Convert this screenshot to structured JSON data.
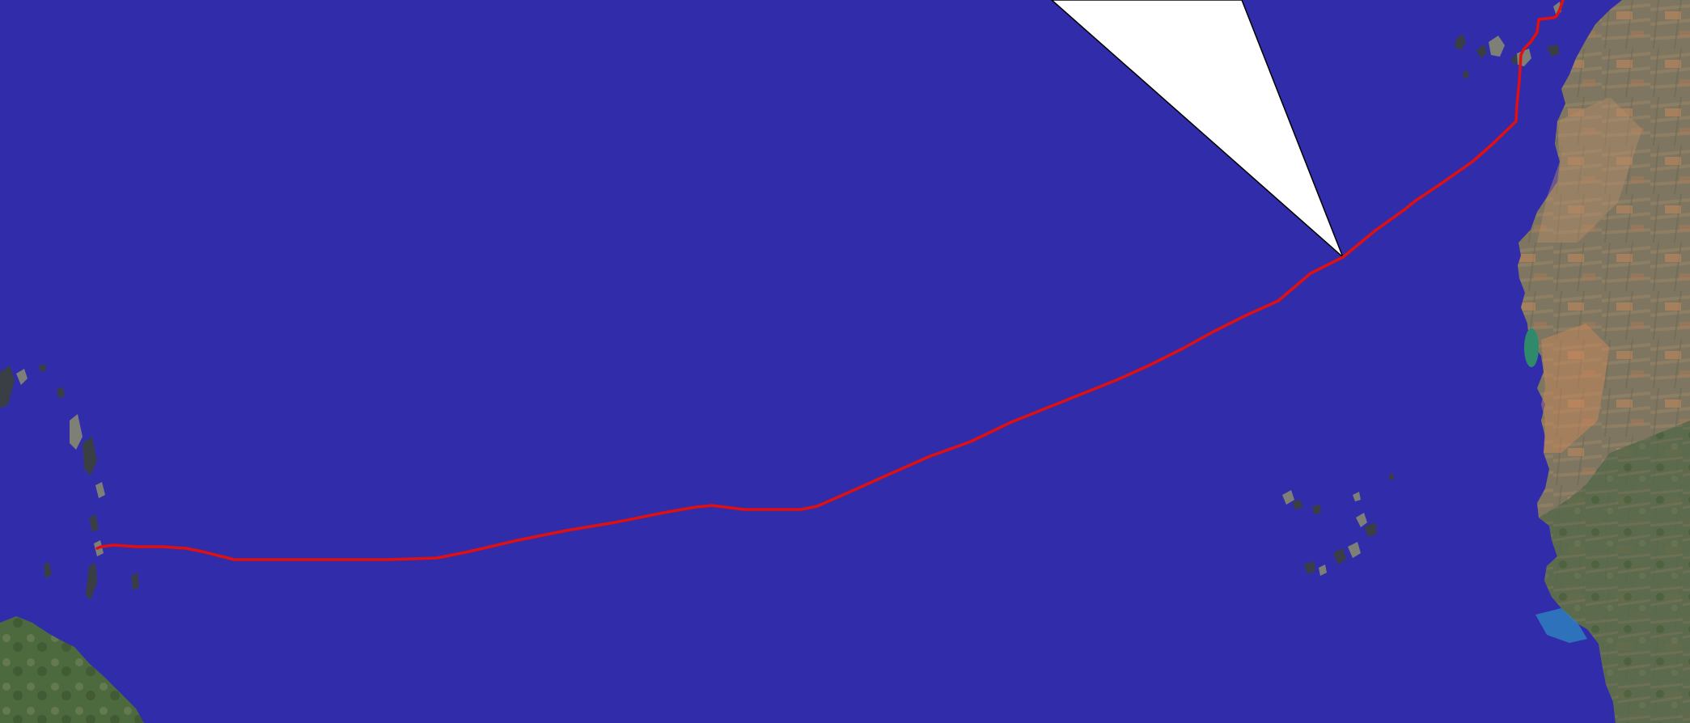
{
  "map": {
    "ocean_color": "#312DAA",
    "route_color": "#E01010",
    "callout_fill": "#FFFFFF",
    "callout_stroke": "#000000",
    "land_colors": {
      "africa_base": "#7E7660",
      "desert_tan": "#B58F6A",
      "desert_orange": "#C9875C",
      "vegetation": "#4F6B3D",
      "island_dark": "#3A3F45",
      "island_grey": "#7E8078",
      "lagoon": "#2E8A6A",
      "shallow_water": "#2F7FBF"
    },
    "features": [
      {
        "name": "africa-west-coast",
        "type": "landmass"
      },
      {
        "name": "canary-islands",
        "type": "island-group"
      },
      {
        "name": "cape-verde-islands",
        "type": "island-group"
      },
      {
        "name": "lesser-antilles",
        "type": "island-group"
      },
      {
        "name": "south-america-northeast",
        "type": "landmass"
      }
    ],
    "route": {
      "name": "transatlantic-route",
      "from": "canary-islands",
      "to": "lesser-antilles"
    },
    "callout": {
      "name": "speech-bubble-pointer",
      "text": ""
    }
  }
}
